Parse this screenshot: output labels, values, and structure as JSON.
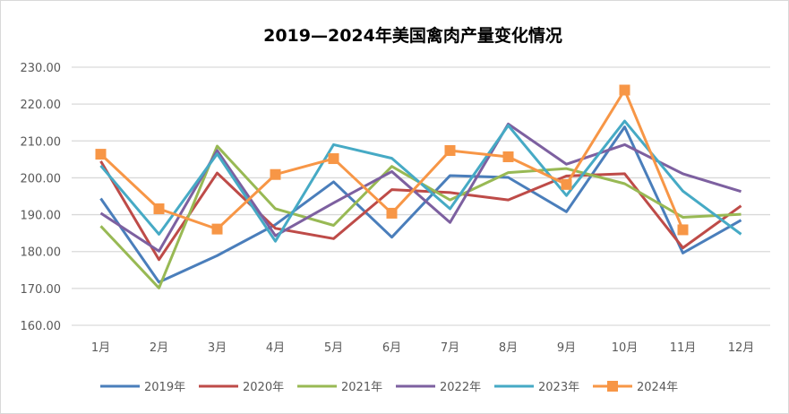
{
  "chart_data": {
    "type": "line",
    "title": "2019—2024年美国禽肉产量变化情况",
    "xlabel": "",
    "ylabel": "",
    "categories": [
      "1月",
      "2月",
      "3月",
      "4月",
      "5月",
      "6月",
      "7月",
      "8月",
      "9月",
      "10月",
      "11月",
      "12月"
    ],
    "ylim": [
      160,
      230
    ],
    "yticks": [
      "160.00",
      "170.00",
      "180.00",
      "190.00",
      "200.00",
      "210.00",
      "220.00",
      "230.00"
    ],
    "grid": true,
    "legend_position": "bottom",
    "series": [
      {
        "name": "2019年",
        "color": "#4a7ebb",
        "marker": "none",
        "values": [
          194.4,
          171.7,
          178.9,
          187.3,
          198.9,
          183.9,
          200.6,
          200.1,
          190.8,
          213.8,
          179.6,
          188.5
        ]
      },
      {
        "name": "2020年",
        "color": "#be4b48",
        "marker": "none",
        "values": [
          204.5,
          177.8,
          201.3,
          186.3,
          183.5,
          196.8,
          196.0,
          194.0,
          200.5,
          201.1,
          181.0,
          192.4
        ]
      },
      {
        "name": "2021年",
        "color": "#98b954",
        "marker": "none",
        "values": [
          186.9,
          170.1,
          208.6,
          191.6,
          187.1,
          203.1,
          194.0,
          201.4,
          202.5,
          198.4,
          189.3,
          190.1
        ]
      },
      {
        "name": "2022年",
        "color": "#7d60a0",
        "marker": "none",
        "values": [
          190.4,
          180.1,
          207.4,
          184.3,
          193.2,
          201.7,
          187.9,
          214.6,
          203.7,
          209.0,
          201.1,
          196.3
        ]
      },
      {
        "name": "2023年",
        "color": "#46aac5",
        "marker": "none",
        "values": [
          203.3,
          184.7,
          206.5,
          182.8,
          209.0,
          205.3,
          191.6,
          214.2,
          195.2,
          215.4,
          196.4,
          184.7
        ]
      },
      {
        "name": "2024年",
        "color": "#f79646",
        "marker": "square",
        "values": [
          206.4,
          191.6,
          186.1,
          200.9,
          205.2,
          190.4,
          207.4,
          205.7,
          198.2,
          223.8,
          185.9,
          null
        ]
      }
    ]
  }
}
